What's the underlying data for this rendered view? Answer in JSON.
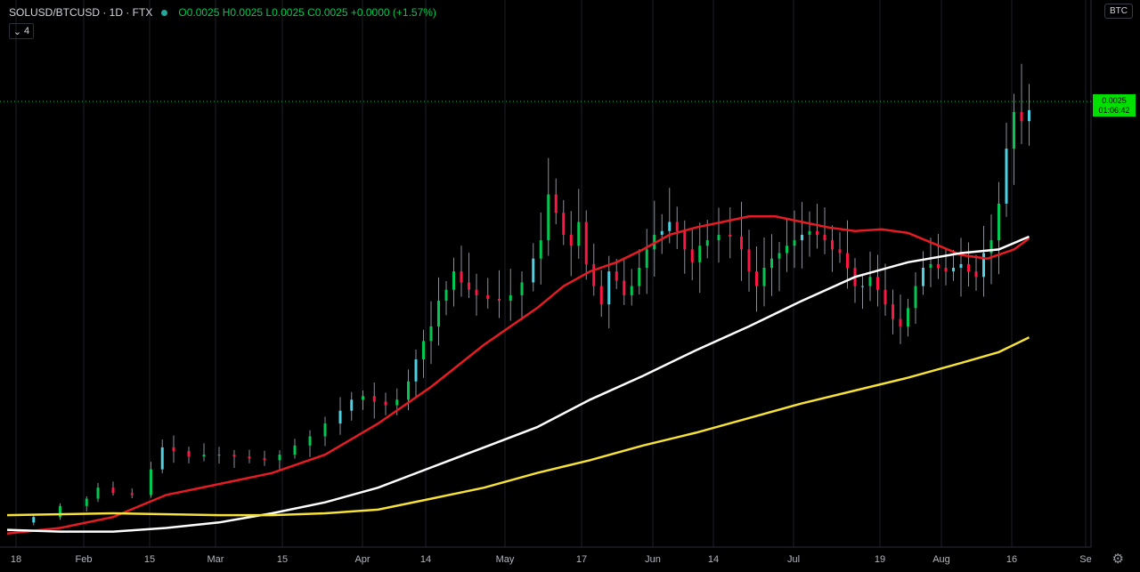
{
  "header": {
    "symbol": "SOLUSD/BTCUSD · 1D · FTX",
    "ohlc": "O0.0025 H0.0025 L0.0025 C0.0025 +0.0000 (+1.57%)",
    "indicator_count": "4",
    "currency": "BTC"
  },
  "price_tag": {
    "price": "0.0025",
    "countdown": "01:06:42"
  },
  "colors": {
    "up": "#00c853",
    "down": "#ff1744",
    "up_hollow": "#4dd0e1",
    "ma_red": "#e51c23",
    "ma_white": "#ffffff",
    "ma_yellow": "#f6e03a",
    "grid": "#1c1f26",
    "last_price": "#00c853"
  },
  "chart_data": {
    "type": "candlestick",
    "x_tick_labels": [
      "18",
      "Feb",
      "15",
      "Mar",
      "15",
      "Apr",
      "14",
      "May",
      "17",
      "Jun",
      "14",
      "Jul",
      "19",
      "Aug",
      "16",
      "Se"
    ],
    "y_unit": "BTC",
    "last_price": 0.0025,
    "points": [
      {
        "d": 0,
        "c": 0.00021
      },
      {
        "d": 7,
        "c": 0.00024
      },
      {
        "d": 14,
        "c": 0.0003
      },
      {
        "d": 21,
        "c": 0.00034
      },
      {
        "d": 24,
        "c": 0.0004
      },
      {
        "d": 28,
        "c": 0.00037
      },
      {
        "d": 33,
        "c": 0.00036
      },
      {
        "d": 38,
        "c": 0.0005
      },
      {
        "d": 41,
        "c": 0.00062
      },
      {
        "d": 44,
        "c": 0.0006
      },
      {
        "d": 48,
        "c": 0.00057
      },
      {
        "d": 52,
        "c": 0.00058
      },
      {
        "d": 56,
        "c": 0.00058
      },
      {
        "d": 60,
        "c": 0.00057
      },
      {
        "d": 64,
        "c": 0.00056
      },
      {
        "d": 68,
        "c": 0.00055
      },
      {
        "d": 72,
        "c": 0.00058
      },
      {
        "d": 76,
        "c": 0.00063
      },
      {
        "d": 80,
        "c": 0.00068
      },
      {
        "d": 84,
        "c": 0.00075
      },
      {
        "d": 88,
        "c": 0.00082
      },
      {
        "d": 91,
        "c": 0.00088
      },
      {
        "d": 94,
        "c": 0.0009
      },
      {
        "d": 97,
        "c": 0.00087
      },
      {
        "d": 100,
        "c": 0.00085
      },
      {
        "d": 103,
        "c": 0.00088
      },
      {
        "d": 106,
        "c": 0.00098
      },
      {
        "d": 108,
        "c": 0.0011
      },
      {
        "d": 110,
        "c": 0.0012
      },
      {
        "d": 112,
        "c": 0.00128
      },
      {
        "d": 114,
        "c": 0.00142
      },
      {
        "d": 116,
        "c": 0.00148
      },
      {
        "d": 118,
        "c": 0.00158
      },
      {
        "d": 120,
        "c": 0.00152
      },
      {
        "d": 122,
        "c": 0.00148
      },
      {
        "d": 124,
        "c": 0.00145
      },
      {
        "d": 127,
        "c": 0.00143
      },
      {
        "d": 130,
        "c": 0.00142
      },
      {
        "d": 133,
        "c": 0.00145
      },
      {
        "d": 136,
        "c": 0.00152
      },
      {
        "d": 139,
        "c": 0.00165
      },
      {
        "d": 141,
        "c": 0.00175
      },
      {
        "d": 143,
        "c": 0.002
      },
      {
        "d": 145,
        "c": 0.0019
      },
      {
        "d": 147,
        "c": 0.00178
      },
      {
        "d": 149,
        "c": 0.00172
      },
      {
        "d": 151,
        "c": 0.00185
      },
      {
        "d": 153,
        "c": 0.00162
      },
      {
        "d": 155,
        "c": 0.0015
      },
      {
        "d": 157,
        "c": 0.0014
      },
      {
        "d": 159,
        "c": 0.00158
      },
      {
        "d": 161,
        "c": 0.00153
      },
      {
        "d": 163,
        "c": 0.00145
      },
      {
        "d": 165,
        "c": 0.0015
      },
      {
        "d": 167,
        "c": 0.0016
      },
      {
        "d": 169,
        "c": 0.0017
      },
      {
        "d": 171,
        "c": 0.00178
      },
      {
        "d": 173,
        "c": 0.0018
      },
      {
        "d": 175,
        "c": 0.00185
      },
      {
        "d": 177,
        "c": 0.0018
      },
      {
        "d": 179,
        "c": 0.0017
      },
      {
        "d": 181,
        "c": 0.00163
      },
      {
        "d": 183,
        "c": 0.00172
      },
      {
        "d": 185,
        "c": 0.00175
      },
      {
        "d": 188,
        "c": 0.00178
      },
      {
        "d": 191,
        "c": 0.00177
      },
      {
        "d": 194,
        "c": 0.0017
      },
      {
        "d": 196,
        "c": 0.00158
      },
      {
        "d": 198,
        "c": 0.0015
      },
      {
        "d": 200,
        "c": 0.0016
      },
      {
        "d": 202,
        "c": 0.00165
      },
      {
        "d": 204,
        "c": 0.00168
      },
      {
        "d": 206,
        "c": 0.00172
      },
      {
        "d": 208,
        "c": 0.00175
      },
      {
        "d": 210,
        "c": 0.00178
      },
      {
        "d": 212,
        "c": 0.0018
      },
      {
        "d": 214,
        "c": 0.00178
      },
      {
        "d": 216,
        "c": 0.00175
      },
      {
        "d": 218,
        "c": 0.0017
      },
      {
        "d": 220,
        "c": 0.00168
      },
      {
        "d": 222,
        "c": 0.0016
      },
      {
        "d": 224,
        "c": 0.0015
      },
      {
        "d": 226,
        "c": 0.0015
      },
      {
        "d": 228,
        "c": 0.00155
      },
      {
        "d": 230,
        "c": 0.00148
      },
      {
        "d": 232,
        "c": 0.0014
      },
      {
        "d": 234,
        "c": 0.00132
      },
      {
        "d": 236,
        "c": 0.00128
      },
      {
        "d": 238,
        "c": 0.00138
      },
      {
        "d": 240,
        "c": 0.0015
      },
      {
        "d": 242,
        "c": 0.0016
      },
      {
        "d": 244,
        "c": 0.00162
      },
      {
        "d": 246,
        "c": 0.0016
      },
      {
        "d": 248,
        "c": 0.00158
      },
      {
        "d": 250,
        "c": 0.0016
      },
      {
        "d": 252,
        "c": 0.00162
      },
      {
        "d": 254,
        "c": 0.00158
      },
      {
        "d": 256,
        "c": 0.00155
      },
      {
        "d": 258,
        "c": 0.00168
      },
      {
        "d": 260,
        "c": 0.00175
      },
      {
        "d": 262,
        "c": 0.00195
      },
      {
        "d": 264,
        "c": 0.00225
      },
      {
        "d": 266,
        "c": 0.00245
      },
      {
        "d": 268,
        "c": 0.0024
      },
      {
        "d": 270,
        "c": 0.00246
      }
    ],
    "series": [
      {
        "color_key": "ma_red",
        "values": [
          [
            0,
            0.00015
          ],
          [
            14,
            0.00018
          ],
          [
            28,
            0.00024
          ],
          [
            42,
            0.00036
          ],
          [
            56,
            0.00042
          ],
          [
            70,
            0.00048
          ],
          [
            84,
            0.00058
          ],
          [
            98,
            0.00075
          ],
          [
            112,
            0.00095
          ],
          [
            126,
            0.00118
          ],
          [
            140,
            0.00138
          ],
          [
            147,
            0.0015
          ],
          [
            154,
            0.00158
          ],
          [
            161,
            0.00163
          ],
          [
            168,
            0.0017
          ],
          [
            175,
            0.00178
          ],
          [
            182,
            0.00182
          ],
          [
            189,
            0.00185
          ],
          [
            196,
            0.00188
          ],
          [
            203,
            0.00188
          ],
          [
            210,
            0.00185
          ],
          [
            217,
            0.00182
          ],
          [
            224,
            0.0018
          ],
          [
            231,
            0.00181
          ],
          [
            238,
            0.00179
          ],
          [
            245,
            0.00173
          ],
          [
            252,
            0.00167
          ],
          [
            259,
            0.00165
          ],
          [
            266,
            0.0017
          ],
          [
            270,
            0.00176
          ]
        ]
      },
      {
        "color_key": "ma_white",
        "values": [
          [
            0,
            0.00017
          ],
          [
            14,
            0.00016
          ],
          [
            28,
            0.00016
          ],
          [
            42,
            0.00018
          ],
          [
            56,
            0.00021
          ],
          [
            70,
            0.00026
          ],
          [
            84,
            0.00032
          ],
          [
            98,
            0.0004
          ],
          [
            112,
            0.00051
          ],
          [
            126,
            0.00062
          ],
          [
            140,
            0.00073
          ],
          [
            154,
            0.00088
          ],
          [
            168,
            0.00101
          ],
          [
            182,
            0.00115
          ],
          [
            196,
            0.00128
          ],
          [
            210,
            0.00142
          ],
          [
            224,
            0.00155
          ],
          [
            238,
            0.00163
          ],
          [
            252,
            0.00168
          ],
          [
            262,
            0.0017
          ],
          [
            270,
            0.00177
          ]
        ]
      },
      {
        "color_key": "ma_yellow",
        "values": [
          [
            0,
            0.00025
          ],
          [
            28,
            0.00026
          ],
          [
            56,
            0.00025
          ],
          [
            70,
            0.00025
          ],
          [
            84,
            0.00026
          ],
          [
            98,
            0.00028
          ],
          [
            112,
            0.00034
          ],
          [
            126,
            0.0004
          ],
          [
            140,
            0.00048
          ],
          [
            154,
            0.00055
          ],
          [
            168,
            0.00063
          ],
          [
            182,
            0.0007
          ],
          [
            196,
            0.00078
          ],
          [
            210,
            0.00086
          ],
          [
            224,
            0.00093
          ],
          [
            238,
            0.001
          ],
          [
            252,
            0.00108
          ],
          [
            262,
            0.00114
          ],
          [
            270,
            0.00122
          ]
        ]
      }
    ]
  }
}
